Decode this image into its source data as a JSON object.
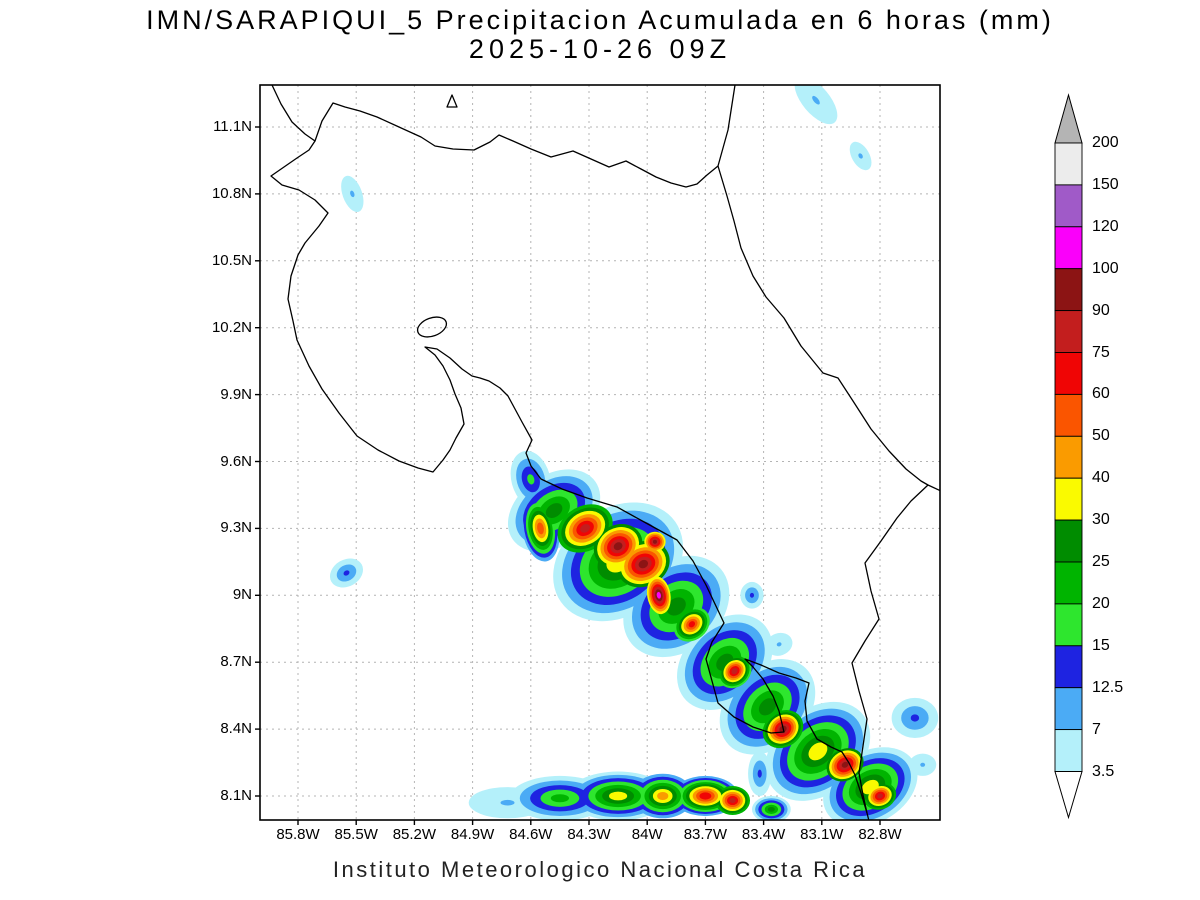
{
  "title": {
    "line1": "IMN/SARAPIQUI_5 Precipitacion Acumulada en 6 horas (mm)",
    "line2": "2025-10-26 09Z"
  },
  "footer": "Instituto Meteorologico Nacional Costa Rica",
  "axes": {
    "lat_ticks": [
      "11.1N",
      "10.8N",
      "10.5N",
      "10.2N",
      "9.9N",
      "9.6N",
      "9.3N",
      "9N",
      "8.7N",
      "8.4N",
      "8.1N"
    ],
    "lon_ticks": [
      "85.8W",
      "85.5W",
      "85.2W",
      "84.9W",
      "84.6W",
      "84.3W",
      "84W",
      "83.7W",
      "83.4W",
      "83.1W",
      "82.8W"
    ]
  },
  "colorbar": {
    "labels": [
      "200",
      "150",
      "120",
      "100",
      "90",
      "75",
      "60",
      "50",
      "40",
      "30",
      "25",
      "20",
      "15",
      "12.5",
      "7",
      "3.5"
    ],
    "band_colors_top_to_bottom": [
      "#ececec",
      "#a05ac8",
      "#fa00fa",
      "#8c1414",
      "#c31e1e",
      "#f00505",
      "#fa5500",
      "#fa9b00",
      "#fafa00",
      "#008c00",
      "#00b400",
      "#2ee62e",
      "#1e23e1",
      "#4babf5",
      "#b4f0fa"
    ],
    "arrow_top_color": "#b4b4b4",
    "arrow_bottom_color": "#ffffff"
  },
  "chart_data": {
    "type": "heatmap",
    "title": "IMN/SARAPIQUI_5 Precipitacion Acumulada en 6 horas (mm)",
    "valid_time": "2025-10-26 09Z",
    "units": "mm",
    "region": "Costa Rica",
    "lon_deg_west_range": [
      86.0,
      82.5
    ],
    "lat_deg_north_range": [
      8.0,
      11.3
    ],
    "grid_interval_deg": 0.3,
    "levels_mm": [
      3.5,
      7,
      12.5,
      15,
      20,
      25,
      30,
      40,
      50,
      60,
      75,
      90,
      100,
      120,
      150,
      200
    ],
    "level_colors": [
      "#b4f0fa",
      "#4babf5",
      "#1e23e1",
      "#2ee62e",
      "#00b400",
      "#008c00",
      "#fafa00",
      "#fa9b00",
      "#fa5500",
      "#f00505",
      "#c31e1e",
      "#8c1414",
      "#fa00fa",
      "#a05ac8",
      "#ececec",
      "#b4b4b4"
    ],
    "cell_fields": [
      "lon_w",
      "lat_n",
      "rx_deg",
      "ry_deg",
      "rot_deg",
      "base_mm",
      "peak_mm"
    ],
    "precip_cells": [
      [
        84.6,
        9.52,
        0.1,
        0.13,
        -15,
        3.5,
        15
      ],
      [
        84.48,
        9.38,
        0.26,
        0.16,
        -35,
        3.5,
        25
      ],
      [
        84.15,
        9.15,
        0.36,
        0.24,
        -35,
        3.5,
        30
      ],
      [
        83.85,
        8.95,
        0.3,
        0.2,
        -40,
        3.5,
        25
      ],
      [
        83.6,
        8.7,
        0.28,
        0.18,
        -45,
        3.5,
        25
      ],
      [
        83.38,
        8.5,
        0.28,
        0.18,
        -45,
        3.5,
        25
      ],
      [
        83.12,
        8.3,
        0.3,
        0.19,
        -40,
        3.5,
        30
      ],
      [
        82.85,
        8.14,
        0.26,
        0.16,
        -30,
        3.5,
        30
      ],
      [
        84.55,
        9.3,
        0.095,
        0.15,
        -10,
        7,
        50
      ],
      [
        84.32,
        9.3,
        0.15,
        0.1,
        -30,
        20,
        75
      ],
      [
        84.15,
        9.22,
        0.13,
        0.095,
        -30,
        25,
        90
      ],
      [
        84.02,
        9.14,
        0.14,
        0.1,
        -25,
        25,
        95
      ],
      [
        83.94,
        9.0,
        0.06,
        0.085,
        -10,
        30,
        110
      ],
      [
        83.96,
        9.24,
        0.055,
        0.045,
        0,
        30,
        95
      ],
      [
        83.77,
        8.87,
        0.1,
        0.07,
        -40,
        15,
        65
      ],
      [
        83.55,
        8.66,
        0.095,
        0.07,
        -45,
        15,
        75
      ],
      [
        83.3,
        8.4,
        0.11,
        0.08,
        -35,
        20,
        95
      ],
      [
        82.98,
        8.24,
        0.1,
        0.07,
        -30,
        25,
        95
      ],
      [
        82.8,
        8.1,
        0.085,
        0.06,
        -20,
        20,
        75
      ],
      [
        84.72,
        8.07,
        0.2,
        0.07,
        0,
        3.5,
        8
      ],
      [
        84.45,
        8.09,
        0.26,
        0.1,
        0,
        3.5,
        22
      ],
      [
        84.15,
        8.1,
        0.26,
        0.11,
        0,
        3.5,
        35
      ],
      [
        83.92,
        8.1,
        0.16,
        0.1,
        0,
        7,
        45
      ],
      [
        83.7,
        8.1,
        0.17,
        0.09,
        0,
        7,
        65
      ],
      [
        83.56,
        8.08,
        0.09,
        0.065,
        0,
        20,
        75
      ],
      [
        83.42,
        8.2,
        0.06,
        0.1,
        0,
        3.5,
        13
      ],
      [
        83.36,
        8.04,
        0.1,
        0.06,
        0,
        3.5,
        25
      ],
      [
        85.52,
        10.8,
        0.05,
        0.085,
        -20,
        3.5,
        10
      ],
      [
        85.55,
        9.1,
        0.09,
        0.06,
        -30,
        3.5,
        13
      ],
      [
        83.13,
        11.22,
        0.07,
        0.13,
        -40,
        3.5,
        8
      ],
      [
        82.9,
        10.97,
        0.045,
        0.07,
        -30,
        3.5,
        8
      ],
      [
        83.46,
        9.0,
        0.06,
        0.06,
        0,
        3.5,
        13
      ],
      [
        83.32,
        8.78,
        0.07,
        0.05,
        -20,
        3.5,
        10
      ],
      [
        82.62,
        8.45,
        0.12,
        0.09,
        0,
        3.5,
        13
      ],
      [
        82.58,
        8.24,
        0.07,
        0.05,
        0,
        3.5,
        8
      ]
    ]
  }
}
